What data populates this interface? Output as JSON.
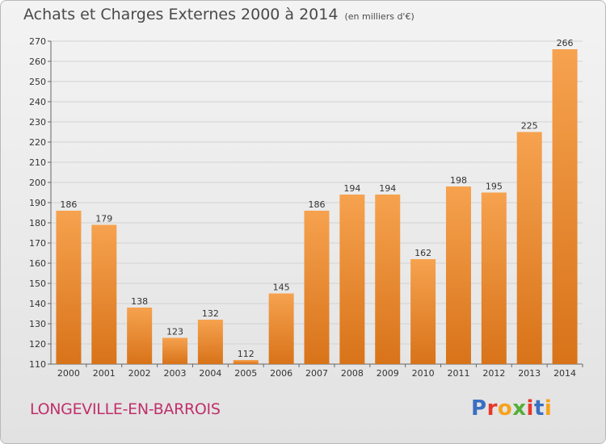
{
  "header": {
    "title": "Achats et Charges Externes 2000 à 2014",
    "subtitle": "(en milliers d'€)"
  },
  "footer": {
    "commune": "LONGEVILLE-EN-BARROIS",
    "logo": "Proxiti"
  },
  "colors": {
    "bar_top": "#f6a24f",
    "bar_bottom": "#d87319",
    "commune": "#c0306a",
    "logo_letters": [
      "#3a6fc1",
      "#e8362b",
      "#f7a21b",
      "#55ae3a",
      "#e8362b",
      "#3a6fc1",
      "#f7a21b"
    ]
  },
  "chart_data": {
    "type": "bar",
    "title": "Achats et Charges Externes 2000 à 2014",
    "categories": [
      "2000",
      "2001",
      "2002",
      "2003",
      "2004",
      "2005",
      "2006",
      "2007",
      "2008",
      "2009",
      "2010",
      "2011",
      "2012",
      "2013",
      "2014"
    ],
    "values": [
      186,
      179,
      138,
      123,
      132,
      112,
      145,
      186,
      194,
      194,
      162,
      198,
      195,
      225,
      266
    ],
    "ylim": [
      110,
      270
    ],
    "yticks": [
      110,
      120,
      130,
      140,
      150,
      160,
      170,
      180,
      190,
      200,
      210,
      220,
      230,
      240,
      250,
      260,
      270
    ],
    "grid": true,
    "data_labels": true
  }
}
